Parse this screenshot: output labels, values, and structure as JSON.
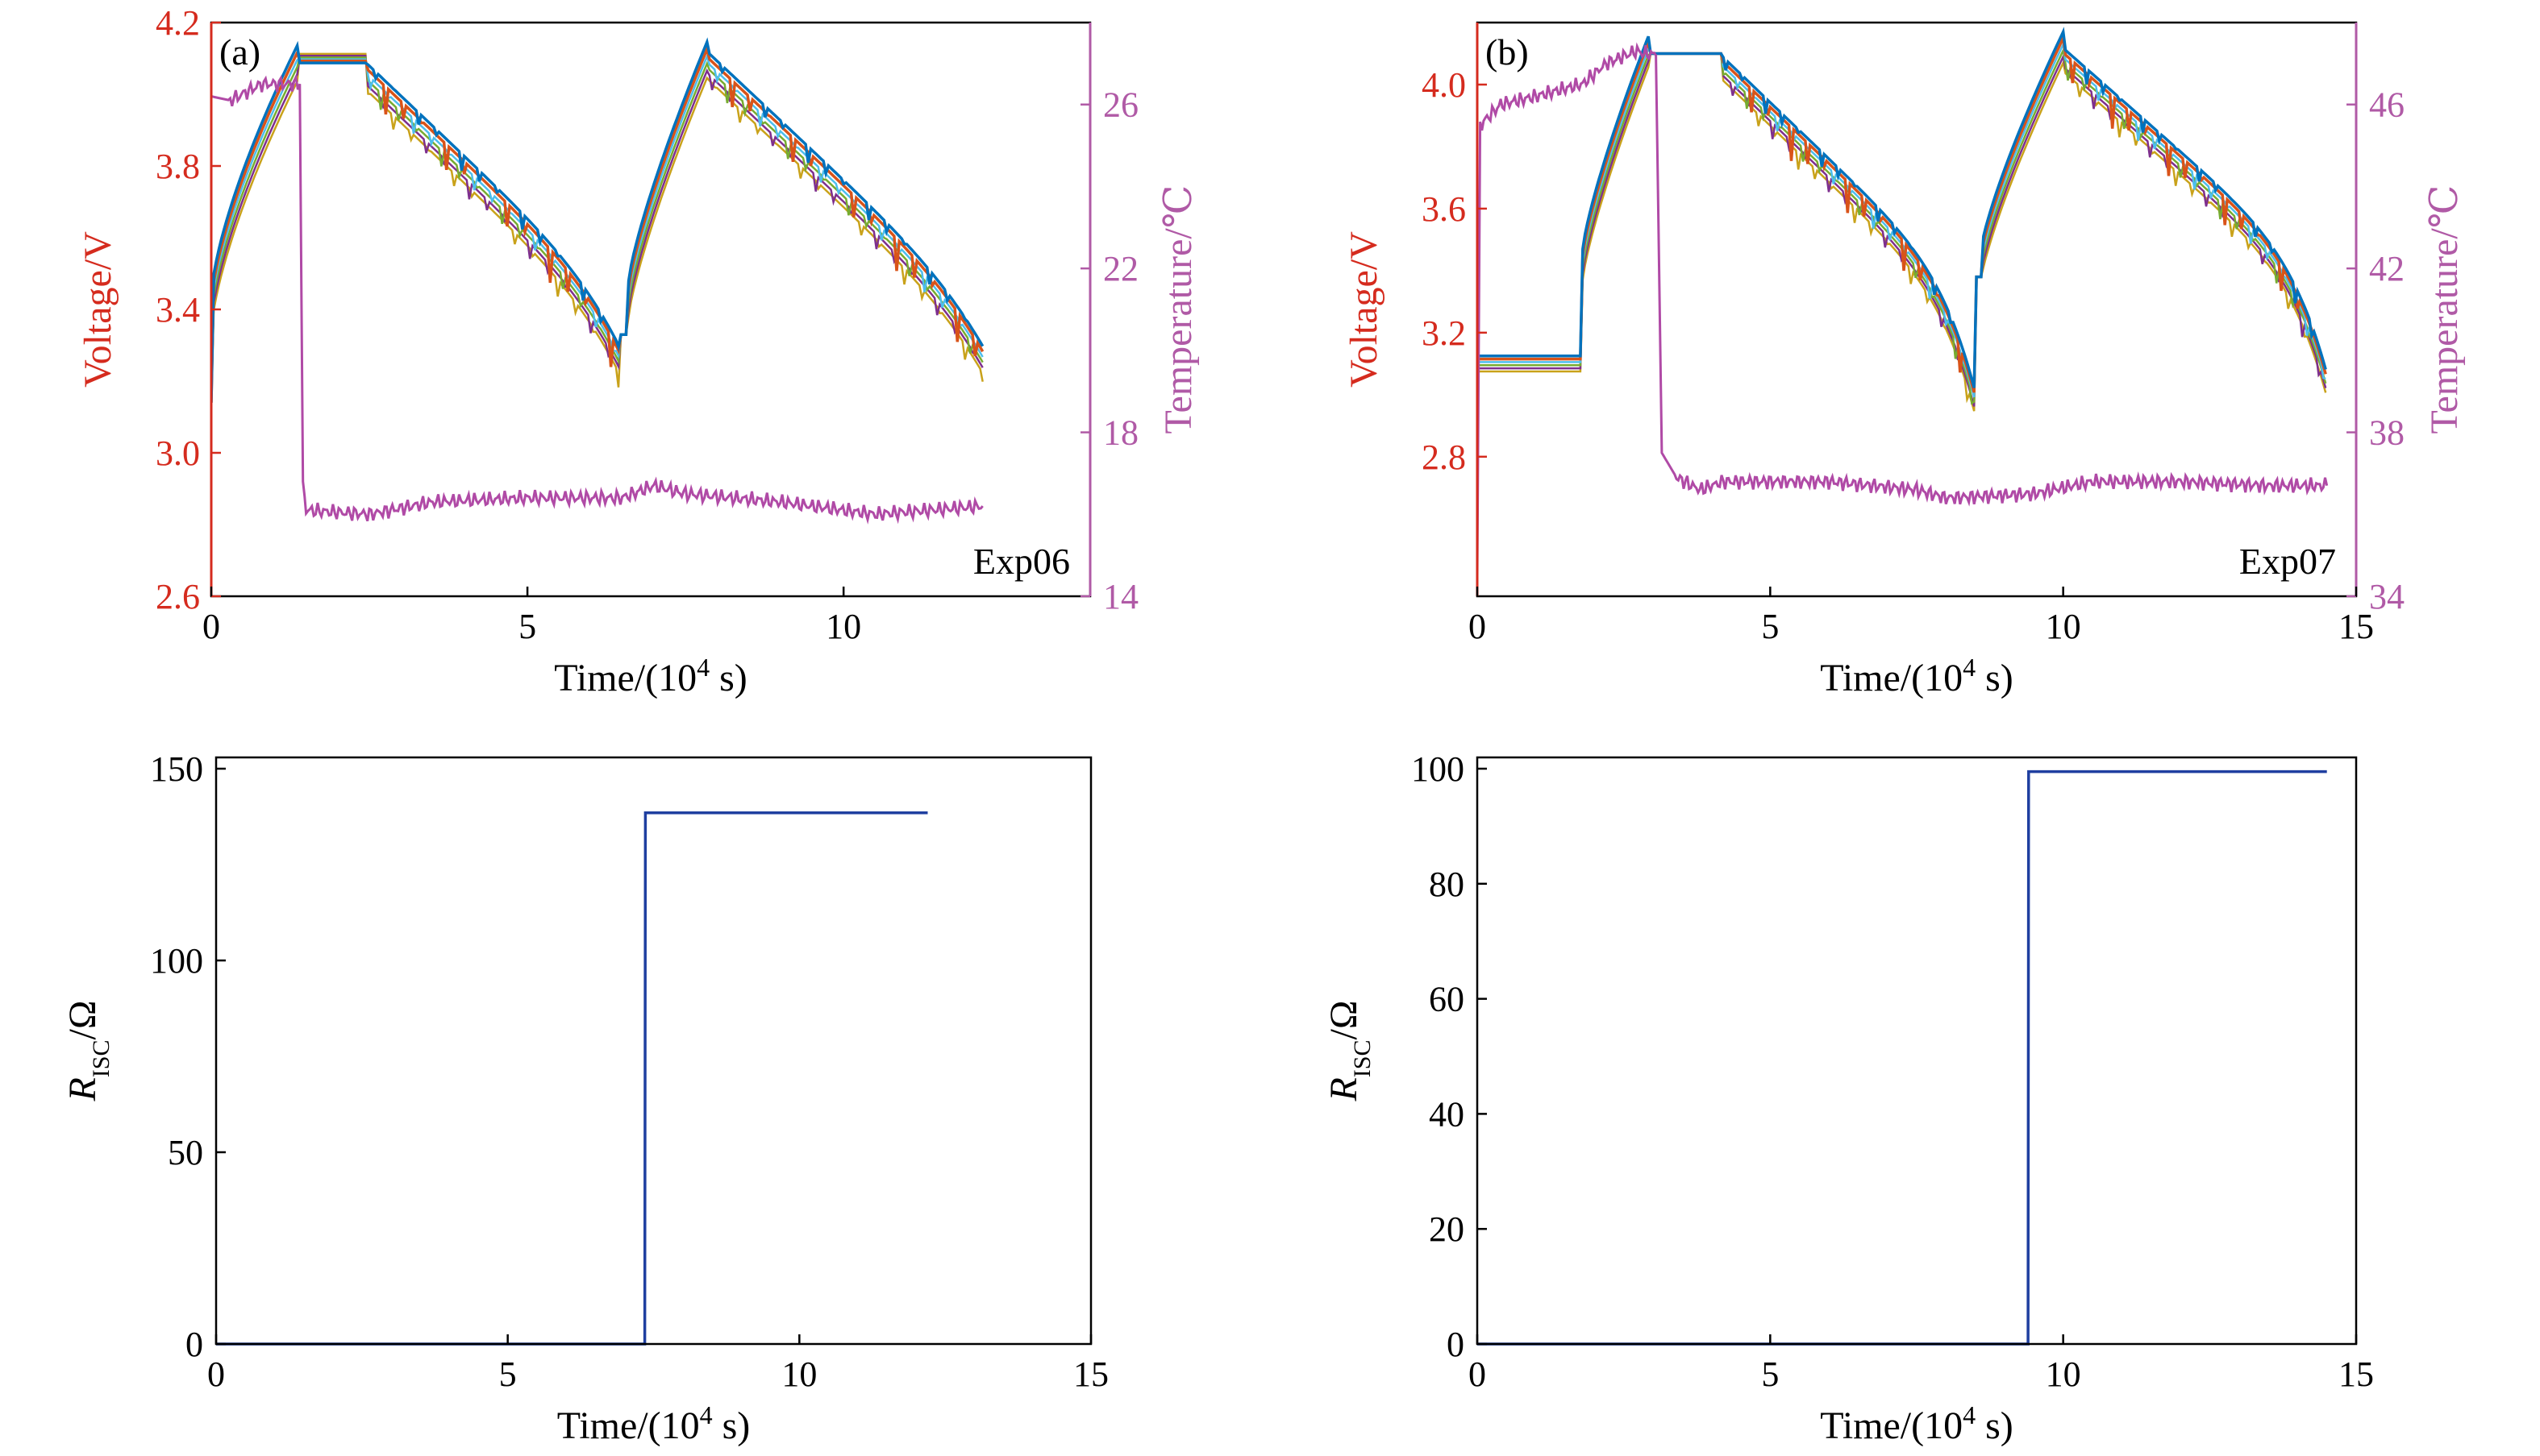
{
  "colors": {
    "voltage_axis": "#d52b1e",
    "temperature_axis": "#b05aa6",
    "temperature_line": "#b04aa6",
    "cell_orange": "#d95319",
    "cell_yellow": "#c9a21a",
    "cell_purple": "#7e2f8e",
    "cell_green": "#77ac30",
    "cell_cyan": "#4dbeee",
    "cell_blue": "#0072bd",
    "risc_line": "#1f3fa0",
    "axis": "#000000"
  },
  "chart_data": [
    {
      "id": "a",
      "type": "line",
      "panel_label": "(a)",
      "annotation": "Exp06",
      "xlabel": "Time/(10",
      "xlabel_sup": "4",
      "xlabel_tail": " s)",
      "ylabel": "Voltage/V",
      "y2label": "Temperature/℃",
      "xlim": [
        0,
        13.9
      ],
      "ylim": [
        2.6,
        4.2
      ],
      "y2lim": [
        14,
        28
      ],
      "xticks": [
        "0",
        "5",
        "10"
      ],
      "yticks": [
        "2.6",
        "3.0",
        "3.4",
        "3.8",
        "4.2"
      ],
      "y2ticks": [
        "14",
        "18",
        "22",
        "26"
      ],
      "grid": false,
      "cycle": {
        "start": 0,
        "charge_end": 1.4,
        "cv_end": 2.45,
        "dis1_end": 6.45,
        "charge2_end": 7.85,
        "dis2_end": 12.2,
        "v_start": 3.14,
        "v_top": 4.1,
        "v_low1": 3.26,
        "v_low2": 3.26,
        "v_after_dip": 3.33
      },
      "temperature": {
        "initial": 26.3,
        "drop_time": 1.45,
        "steady": 16.3,
        "end_time": 12.2,
        "points": [
          [
            0,
            26.2
          ],
          [
            0.3,
            26.1
          ],
          [
            0.8,
            26.5
          ],
          [
            1.4,
            26.5
          ],
          [
            1.45,
            16.8
          ],
          [
            1.5,
            16.1
          ],
          [
            2.5,
            16.0
          ],
          [
            3.5,
            16.3
          ],
          [
            5.0,
            16.4
          ],
          [
            6.5,
            16.4
          ],
          [
            7.0,
            16.7
          ],
          [
            7.5,
            16.5
          ],
          [
            9.0,
            16.3
          ],
          [
            10.5,
            16.0
          ],
          [
            12.2,
            16.2
          ]
        ]
      }
    },
    {
      "id": "b",
      "type": "line",
      "panel_label": "(b)",
      "annotation": "Exp07",
      "xlabel": "Time/(10",
      "xlabel_sup": "4",
      "xlabel_tail": " s)",
      "ylabel": "Voltage/V",
      "y2label": "Temperature/℃",
      "xlim": [
        0,
        15
      ],
      "ylim": [
        2.35,
        4.2
      ],
      "y2lim": [
        34,
        48
      ],
      "xticks": [
        "0",
        "5",
        "10",
        "15"
      ],
      "yticks": [
        "2.8",
        "3.2",
        "3.6",
        "4.0"
      ],
      "y2ticks": [
        "34",
        "38",
        "42",
        "46"
      ],
      "grid": false,
      "cycle": {
        "start": 0,
        "charge_start": 1.8,
        "charge_end": 2.5,
        "cv_end": 4.2,
        "dis1_end": 8.5,
        "charge2_end": 10.0,
        "dis2_end": 14.5,
        "v_flat": 3.1,
        "v_top": 4.1,
        "v_low1": 2.92,
        "v_low2": 2.98
      },
      "temperature": {
        "drop_time": 3.1,
        "end_time": 14.5,
        "points": [
          [
            0,
            34.5
          ],
          [
            0.05,
            45.5
          ],
          [
            0.4,
            46.0
          ],
          [
            1.0,
            46.2
          ],
          [
            1.8,
            46.5
          ],
          [
            2.2,
            47.0
          ],
          [
            2.7,
            47.3
          ],
          [
            3.05,
            47.2
          ],
          [
            3.15,
            37.5
          ],
          [
            3.4,
            36.9
          ],
          [
            3.8,
            36.6
          ],
          [
            4.2,
            36.8
          ],
          [
            6.0,
            36.8
          ],
          [
            7.5,
            36.6
          ],
          [
            8.0,
            36.4
          ],
          [
            9.5,
            36.5
          ],
          [
            10.5,
            36.8
          ],
          [
            12.0,
            36.8
          ],
          [
            13.5,
            36.7
          ],
          [
            14.5,
            36.7
          ]
        ]
      }
    },
    {
      "id": "c",
      "type": "line",
      "xlabel": "Time/(10",
      "xlabel_sup": "4",
      "xlabel_tail": " s)",
      "ylabel": "R",
      "ylabel_sub": "ISC",
      "ylabel_tail": "/Ω",
      "xlim": [
        0,
        15
      ],
      "ylim": [
        0,
        150
      ],
      "xticks": [
        "0",
        "5",
        "10",
        "15"
      ],
      "yticks": [
        "0",
        "50",
        "100",
        "150"
      ],
      "grid": false,
      "series": [
        {
          "x": [
            0,
            7.35,
            7.36,
            12.2
          ],
          "y": [
            0,
            0,
            138.5,
            138.5
          ]
        }
      ]
    },
    {
      "id": "d",
      "type": "line",
      "xlabel": "Time/(10",
      "xlabel_sup": "4",
      "xlabel_tail": " s)",
      "ylabel": "R",
      "ylabel_sub": "ISC",
      "ylabel_tail": "/Ω",
      "xlim": [
        0,
        15
      ],
      "ylim": [
        0,
        100
      ],
      "xticks": [
        "0",
        "5",
        "10",
        "15"
      ],
      "yticks": [
        "0",
        "20",
        "40",
        "60",
        "80",
        "100"
      ],
      "grid": false,
      "series": [
        {
          "x": [
            0,
            9.4,
            9.41,
            14.5
          ],
          "y": [
            0,
            0,
            99.5,
            99.5
          ]
        }
      ]
    }
  ]
}
